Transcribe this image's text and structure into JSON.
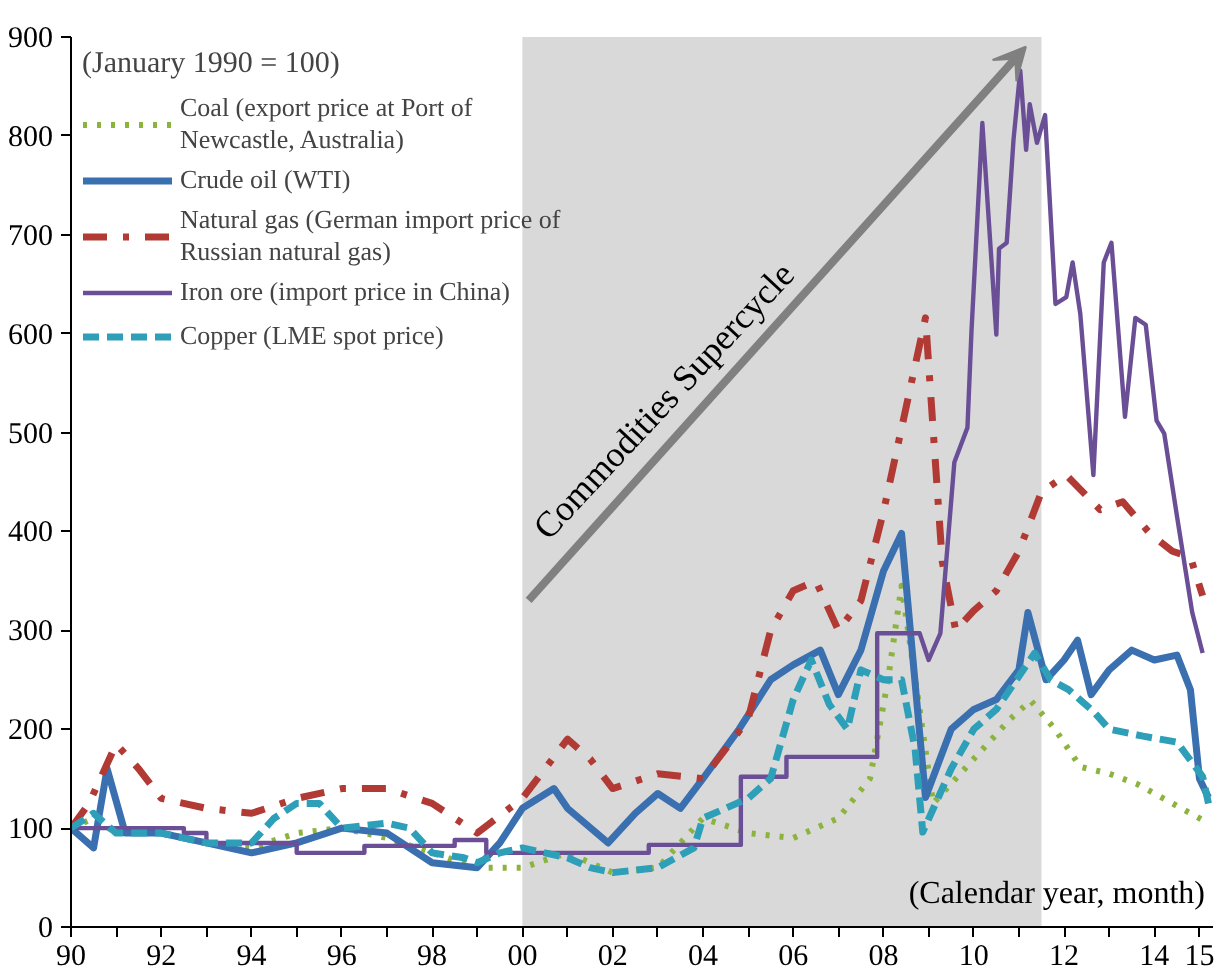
{
  "chart_data": {
    "type": "line",
    "legend_title": "(January 1990 = 100)",
    "annotations": [
      "(Calendar year, month)"
    ],
    "xlim": [
      1990,
      2015.3
    ],
    "ylim": [
      0,
      900
    ],
    "xticks": [
      {
        "value": 1990,
        "label": "90"
      },
      {
        "value": 1991,
        "label": null
      },
      {
        "value": 1992,
        "label": "92"
      },
      {
        "value": 1993,
        "label": null
      },
      {
        "value": 1994,
        "label": "94"
      },
      {
        "value": 1995,
        "label": null
      },
      {
        "value": 1996,
        "label": "96"
      },
      {
        "value": 1997,
        "label": null
      },
      {
        "value": 1998,
        "label": "98"
      },
      {
        "value": 1999,
        "label": null
      },
      {
        "value": 2000,
        "label": "00"
      },
      {
        "value": 2001,
        "label": null
      },
      {
        "value": 2002,
        "label": "02"
      },
      {
        "value": 2003,
        "label": null
      },
      {
        "value": 2004,
        "label": "04"
      },
      {
        "value": 2005,
        "label": null
      },
      {
        "value": 2006,
        "label": "06"
      },
      {
        "value": 2007,
        "label": null
      },
      {
        "value": 2008,
        "label": "08"
      },
      {
        "value": 2009,
        "label": null
      },
      {
        "value": 2010,
        "label": "10"
      },
      {
        "value": 2011,
        "label": null
      },
      {
        "value": 2012,
        "label": "12"
      },
      {
        "value": 2013,
        "label": null
      },
      {
        "value": 2014,
        "label": "14"
      },
      {
        "value": 2015,
        "label": "15"
      }
    ],
    "yticks": [
      0,
      100,
      200,
      300,
      400,
      500,
      600,
      700,
      800,
      900
    ],
    "grid": false,
    "legend": "top left",
    "marker": "none",
    "bands": [
      {
        "axis": "x",
        "from": 2000,
        "to": 2011.5,
        "label": "Commodities Supercycle",
        "color": "#d9d9d9"
      }
    ],
    "series": [
      {
        "name": "Coal (export price at Port of Newcastle, Australia)",
        "color": "#8db33f",
        "line_style": "dotted",
        "x": [
          1990,
          1990.5,
          1991,
          1992,
          1993,
          1994,
          1995,
          1996,
          1997,
          1998,
          1999,
          2000,
          2001,
          2002,
          2003,
          2004,
          2005,
          2006,
          2007,
          2007.7,
          2008.1,
          2008.4,
          2008.8,
          2009.1,
          2009.6,
          2010.3,
          2010.8,
          2011.26,
          2011.8,
          2012.36,
          2013,
          2013.6,
          2014.2,
          2014.6,
          2015.2
        ],
        "values": [
          100,
          110,
          95,
          95,
          85,
          80,
          95,
          100,
          90,
          75,
          60,
          60,
          75,
          55,
          60,
          110,
          95,
          90,
          110,
          150,
          250,
          345,
          220,
          125,
          150,
          185,
          210,
          229,
          200,
          162,
          155,
          145,
          130,
          120,
          105
        ]
      },
      {
        "name": "Crude oil (WTI)",
        "color": "#3a6fb0",
        "line_style": "solid",
        "x": [
          1990,
          1990.5,
          1990.8,
          1991.2,
          1992,
          1993,
          1994,
          1995,
          1996,
          1997,
          1998,
          1999,
          1999.5,
          2000,
          2000.7,
          2001,
          2001.9,
          2002.5,
          2003,
          2003.5,
          2004,
          2004.8,
          2005.5,
          2006,
          2006.6,
          2007,
          2007.5,
          2008,
          2008.4,
          2008.93,
          2009.5,
          2010,
          2010.5,
          2011,
          2011.2,
          2011.6,
          2012,
          2012.3,
          2012.6,
          2013,
          2013.5,
          2014,
          2014.5,
          2014.8,
          2015,
          2015.2
        ],
        "values": [
          100,
          80,
          160,
          95,
          95,
          85,
          75,
          85,
          100,
          95,
          65,
          60,
          85,
          120,
          140,
          120,
          85,
          115,
          135,
          120,
          150,
          200,
          250,
          265,
          280,
          235,
          280,
          360,
          398,
          131,
          200,
          220,
          230,
          260,
          318,
          250,
          270,
          290,
          235,
          260,
          280,
          270,
          275,
          240,
          150,
          131
        ]
      },
      {
        "name": "Natural gas (German import price of Russian natural gas)",
        "color": "#b23a35",
        "line_style": "dashdot",
        "x": [
          1990,
          1990.4,
          1991,
          1991.5,
          1992,
          1993,
          1994,
          1995,
          1996,
          1997,
          1998,
          1999,
          2000,
          2001,
          2001.5,
          2002,
          2003,
          2004,
          2005,
          2005.5,
          2006,
          2006.5,
          2007,
          2007.5,
          2008,
          2008.93,
          2009.3,
          2009.6,
          2010,
          2010.5,
          2011,
          2011.5,
          2012.05,
          2012.8,
          2013.3,
          2013.9,
          2014.4,
          2014.8,
          2015.07
        ],
        "values": [
          100,
          125,
          185,
          160,
          130,
          120,
          115,
          130,
          140,
          140,
          125,
          95,
          130,
          190,
          170,
          140,
          155,
          150,
          210,
          300,
          340,
          350,
          300,
          330,
          420,
          616,
          370,
          300,
          320,
          340,
          380,
          440,
          457,
          422,
          430,
          398,
          380,
          374,
          335
        ]
      },
      {
        "name": "Iron ore (import price in China)",
        "color": "#6a4f96",
        "line_style": "solid",
        "x": [
          1990,
          1992.5,
          1992.5,
          1993,
          1993,
          1995,
          1995,
          1996.5,
          1996.5,
          1998.5,
          1998.5,
          1999.2,
          1999.2,
          2002.8,
          2002.8,
          2004.84,
          2004.84,
          2005.85,
          2005.85,
          2007.86,
          2007.86,
          2008.8,
          2009.0,
          2009.26,
          2009.57,
          2009.86,
          2009.95,
          2010.19,
          2010.5,
          2010.56,
          2010.73,
          2010.88,
          2011.03,
          2011.16,
          2011.24,
          2011.4,
          2011.58,
          2011.81,
          2012.05,
          2012.19,
          2012.36,
          2012.65,
          2012.88,
          2013.05,
          2013.35,
          2013.58,
          2013.81,
          2014.05,
          2014.22,
          2014.5,
          2014.84,
          2015.07
        ],
        "values": [
          100,
          100,
          95,
          95,
          85,
          85,
          75,
          75,
          82,
          82,
          88,
          88,
          75,
          75,
          83,
          83,
          152,
          152,
          172,
          172,
          297,
          297,
          270,
          297,
          470,
          505,
          603,
          813,
          599,
          686,
          692,
          796,
          866,
          786,
          832,
          793,
          821,
          630,
          637,
          672,
          620,
          457,
          672,
          692,
          516,
          616,
          609,
          512,
          499,
          416,
          318,
          277
        ]
      },
      {
        "name": "Copper (LME spot price)",
        "color": "#2e9fb8",
        "line_style": "dashed",
        "x": [
          1990,
          1990.5,
          1991,
          1992,
          1993,
          1994,
          1994.5,
          1995,
          1995.5,
          1996,
          1997,
          1997.5,
          1998,
          1998.7,
          1999,
          1999.5,
          2000,
          2001,
          2001.5,
          2002,
          2003,
          2003.8,
          2004,
          2004.5,
          2005,
          2005.5,
          2006,
          2006.4,
          2006.8,
          2007.2,
          2007.5,
          2008,
          2008.4,
          2008.7,
          2008.87,
          2009.5,
          2010,
          2010.5,
          2011.35,
          2011.7,
          2012.1,
          2012.65,
          2013,
          2013.75,
          2014.5,
          2015.07,
          2015.2
        ],
        "values": [
          100,
          115,
          95,
          95,
          85,
          85,
          110,
          125,
          125,
          100,
          105,
          100,
          75,
          70,
          65,
          75,
          80,
          70,
          60,
          55,
          60,
          80,
          110,
          120,
          130,
          150,
          230,
          270,
          225,
          200,
          260,
          250,
          250,
          180,
          96,
          160,
          200,
          220,
          277,
          250,
          240,
          218,
          200,
          193,
          187,
          152,
          125
        ]
      }
    ]
  }
}
